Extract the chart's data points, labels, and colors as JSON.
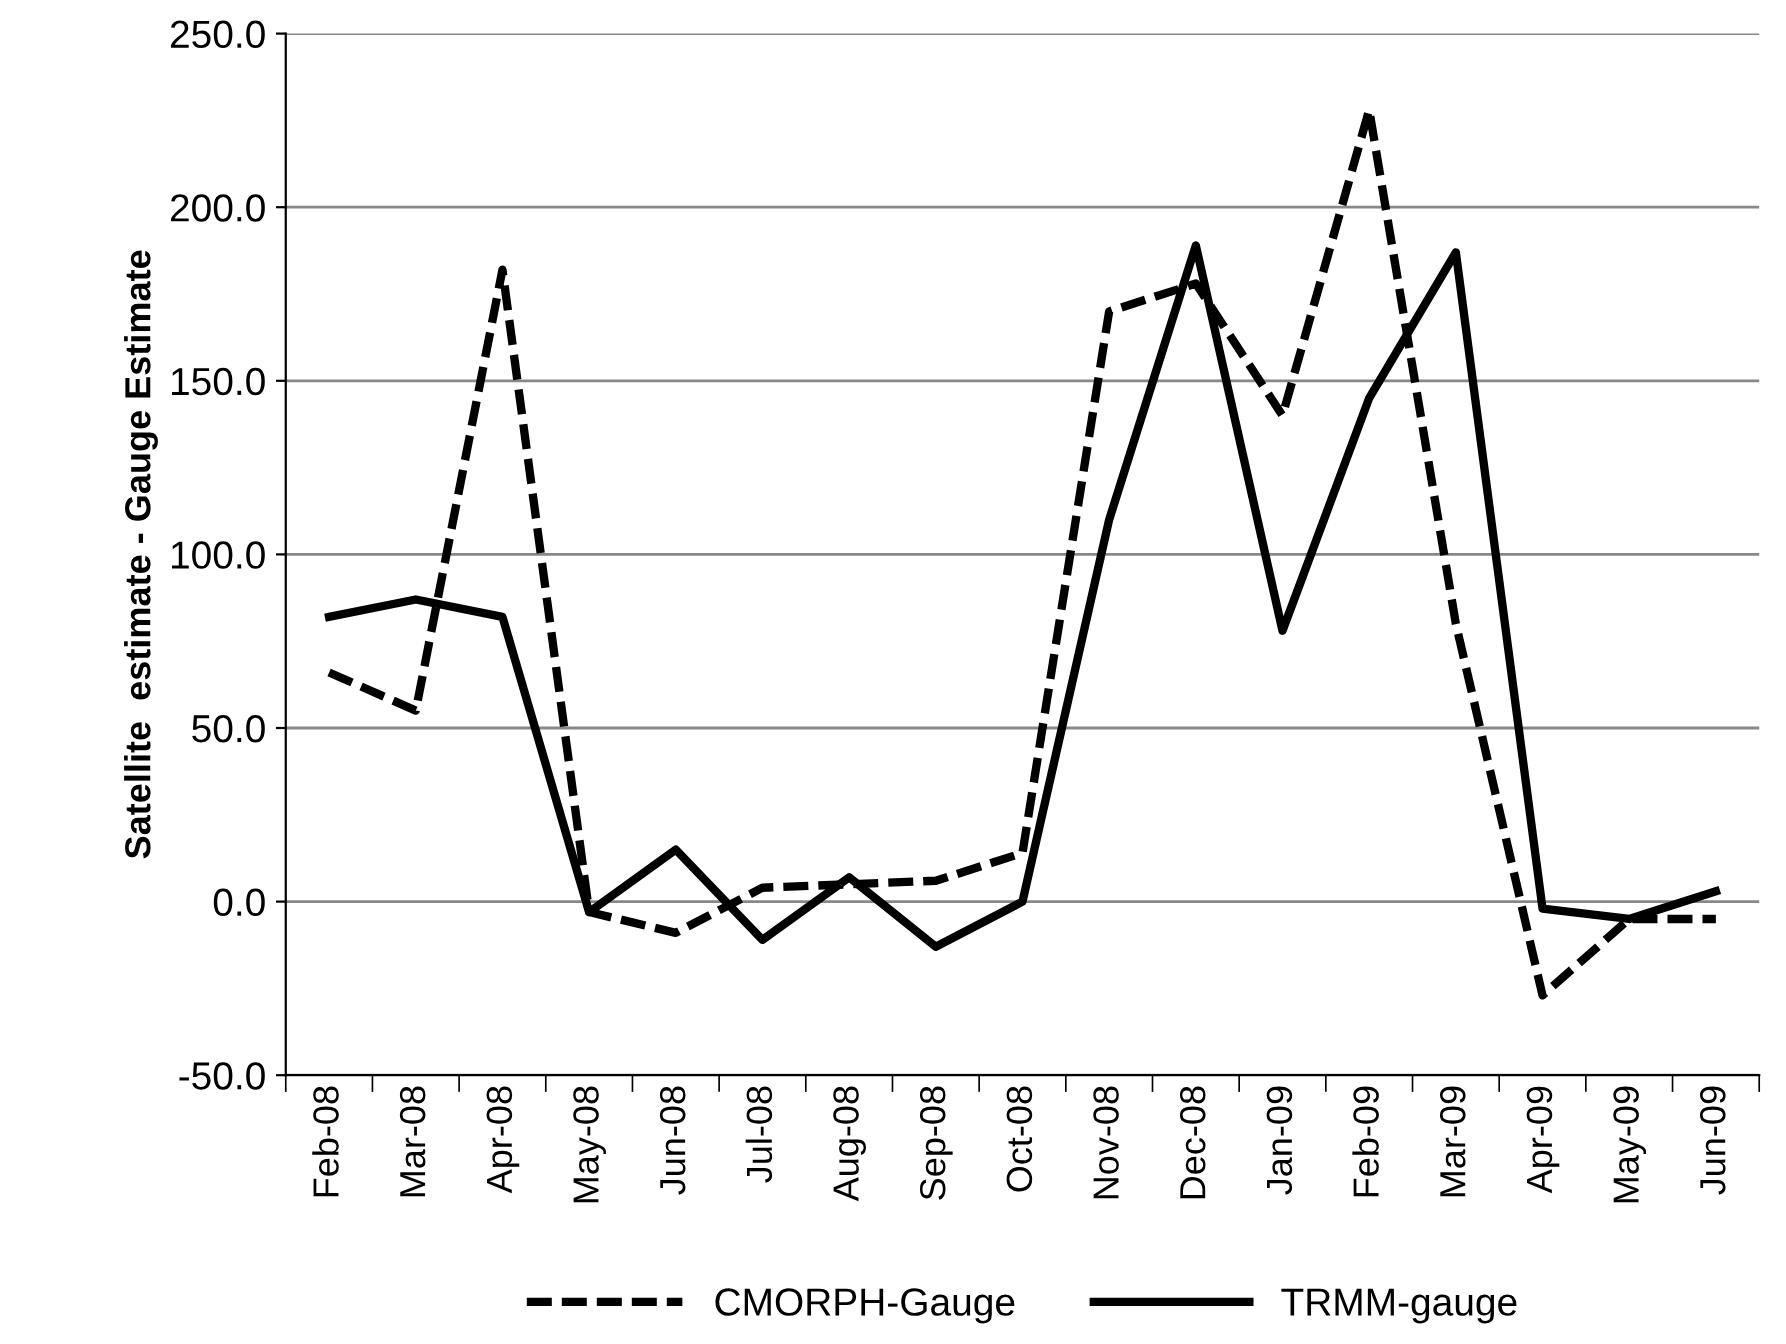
{
  "chart_data": {
    "type": "line",
    "ylabel": "Satellite  estimate - Gauge Estimate",
    "categories": [
      "Feb-08",
      "Mar-08",
      "Apr-08",
      "May-08",
      "Jun-08",
      "Jul-08",
      "Aug-08",
      "Sep-08",
      "Oct-08",
      "Nov-08",
      "Dec-08",
      "Jan-09",
      "Feb-09",
      "Mar-09",
      "Apr-09",
      "May-09",
      "Jun-09"
    ],
    "series": [
      {
        "name": "CMORPH-Gauge",
        "color": "#000000",
        "line_style": "dashed",
        "values": [
          66,
          55,
          182,
          -3,
          -9,
          4,
          5,
          6,
          14,
          170,
          178,
          140,
          228,
          80,
          -27,
          -5,
          -5
        ]
      },
      {
        "name": "TRMM-gauge",
        "color": "#000000",
        "line_style": "solid",
        "values": [
          82,
          87,
          82,
          -3,
          15,
          -11,
          7,
          -13,
          0,
          110,
          189,
          78,
          145,
          187,
          -2,
          -5,
          3
        ]
      }
    ],
    "ylim": [
      -50,
      250
    ],
    "yticks": [
      {
        "value": -50,
        "label": "-50.0"
      },
      {
        "value": 0,
        "label": "0.0"
      },
      {
        "value": 50,
        "label": "50.0"
      },
      {
        "value": 100,
        "label": "100.0"
      },
      {
        "value": 150,
        "label": "150.0"
      },
      {
        "value": 200,
        "label": "200.0"
      },
      {
        "value": 250,
        "label": "250.0"
      }
    ],
    "grid": "y",
    "legend": "bottom",
    "marker": "none"
  }
}
